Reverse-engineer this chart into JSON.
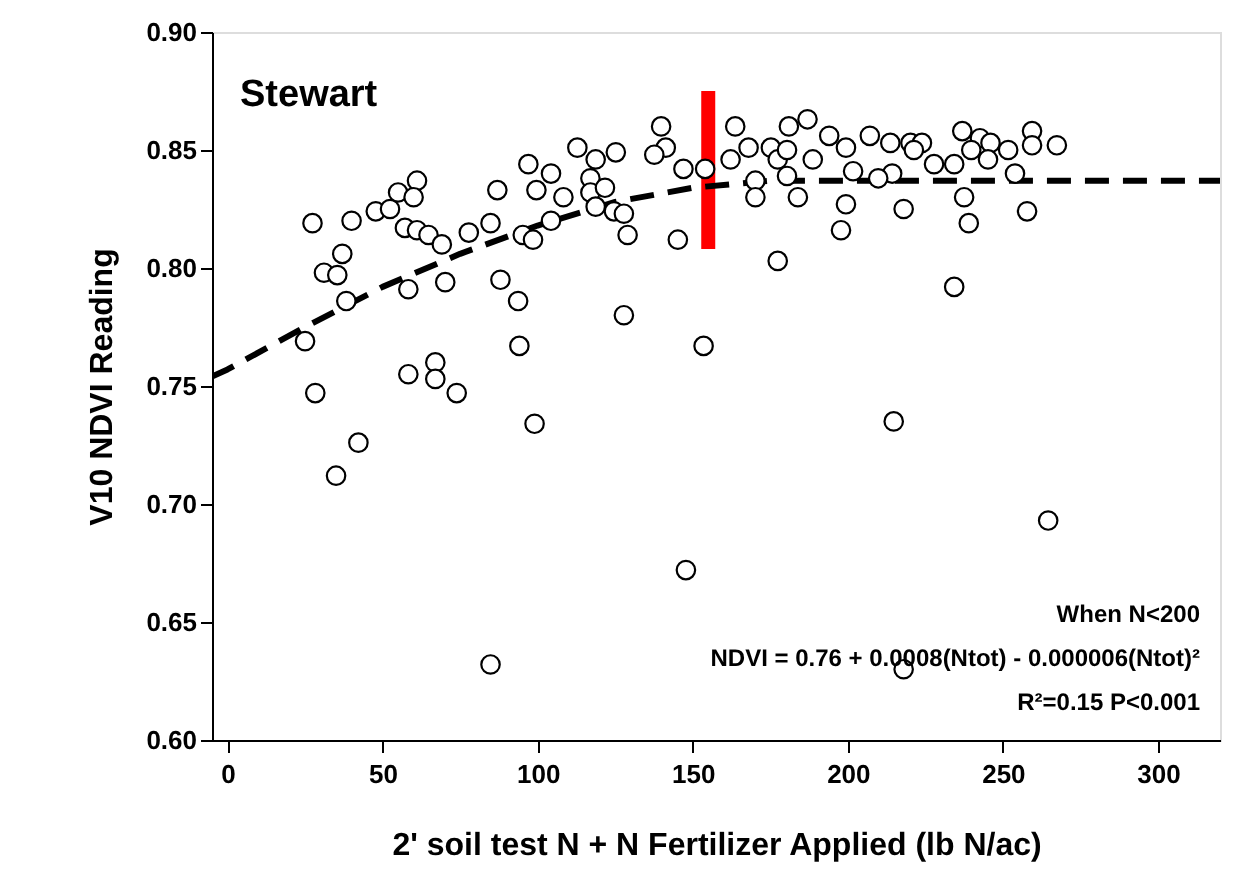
{
  "chart_data": {
    "type": "scatter",
    "xlabel": "2' soil test N + N Fertilizer Applied (lb N/ac)",
    "ylabel": "V10 NDVI Reading",
    "xlim": [
      -5,
      320
    ],
    "xticks": [
      0,
      50,
      100,
      150,
      200,
      250,
      300
    ],
    "ylim": [
      0.6,
      0.9
    ],
    "yticks": [
      {
        "value": 0.6,
        "label": "0.60"
      },
      0.65,
      {
        "value": 0.7,
        "label": "0.70"
      },
      0.75,
      {
        "value": 0.8,
        "label": "0.80"
      },
      0.85,
      {
        "value": 0.9,
        "label": "0.90"
      }
    ],
    "grid": false,
    "annotations": [
      "Stewart",
      "When N<200",
      "NDVI = 0.76 + 0.0008(Ntot) - 0.000006(Ntot)²",
      "R²=0.15  P<0.001"
    ],
    "series": [
      {
        "type": "line",
        "color": "#ff0000",
        "line_style": "solid",
        "x": [
          155,
          155
        ],
        "values": [
          0.808,
          0.875
        ]
      },
      {
        "type": "line",
        "color": "#000000",
        "line_style": "dashed",
        "x": [
          -5,
          0,
          25,
          50,
          75,
          100,
          125,
          150,
          175,
          200,
          250,
          320
        ],
        "values": [
          0.754,
          0.757,
          0.775,
          0.792,
          0.806,
          0.818,
          0.828,
          0.834,
          0.837,
          0.837,
          0.837,
          0.837
        ]
      },
      {
        "color": "#000000",
        "marker": "circle",
        "x": [
          27.4,
          25,
          28.3,
          31.1,
          35.4,
          37,
          38.3,
          40,
          35,
          42.2,
          47.8,
          52.4,
          55,
          61.1,
          60,
          57.2,
          61.1,
          64.8,
          69.1,
          58.3,
          70.2,
          58.3,
          67,
          67,
          73.9,
          77.8,
          84.8,
          87,
          97,
          99.6,
          95.2,
          98.5,
          88,
          93.7,
          94.1,
          99,
          84.8,
          104.3,
          108.3,
          104.3,
          112.8,
          118.7,
          125.2,
          117,
          117,
          121.7,
          118.7,
          124.6,
          127.8,
          129,
          127.8,
          139.8,
          141.3,
          137.6,
          147,
          154,
          145.2,
          153.5,
          147.8,
          162.2,
          163.7,
          168,
          170.2,
          170.2,
          175.2,
          177.4,
          180.4,
          181,
          187,
          180.4,
          183.9,
          188.7,
          177.4,
          194,
          199.4,
          201.7,
          199.4,
          197.8,
          207.1,
          213.7,
          220.2,
          223.9,
          221.3,
          227.8,
          234.3,
          236.9,
          242.6,
          246,
          251.7,
          245.2,
          239.8,
          259.4,
          259.4,
          267.4,
          253.9,
          214.3,
          209.8,
          218,
          237.5,
          239,
          257.8,
          234.3,
          214.8,
          264.6,
          218
        ],
        "values": [
          0.819,
          0.769,
          0.747,
          0.798,
          0.797,
          0.806,
          0.786,
          0.82,
          0.712,
          0.726,
          0.824,
          0.825,
          0.832,
          0.837,
          0.83,
          0.817,
          0.816,
          0.814,
          0.81,
          0.791,
          0.794,
          0.755,
          0.76,
          0.753,
          0.747,
          0.815,
          0.819,
          0.833,
          0.844,
          0.833,
          0.814,
          0.812,
          0.795,
          0.786,
          0.767,
          0.734,
          0.632,
          0.84,
          0.83,
          0.82,
          0.851,
          0.846,
          0.849,
          0.838,
          0.832,
          0.834,
          0.826,
          0.824,
          0.823,
          0.814,
          0.78,
          0.86,
          0.851,
          0.848,
          0.842,
          0.842,
          0.812,
          0.767,
          0.672,
          0.846,
          0.86,
          0.851,
          0.837,
          0.83,
          0.851,
          0.846,
          0.85,
          0.86,
          0.863,
          0.839,
          0.83,
          0.846,
          0.803,
          0.856,
          0.851,
          0.841,
          0.827,
          0.816,
          0.856,
          0.853,
          0.853,
          0.853,
          0.85,
          0.844,
          0.844,
          0.858,
          0.855,
          0.853,
          0.85,
          0.846,
          0.85,
          0.858,
          0.852,
          0.852,
          0.84,
          0.84,
          0.838,
          0.825,
          0.83,
          0.819,
          0.824,
          0.792,
          0.735,
          0.693,
          0.63
        ]
      }
    ]
  }
}
